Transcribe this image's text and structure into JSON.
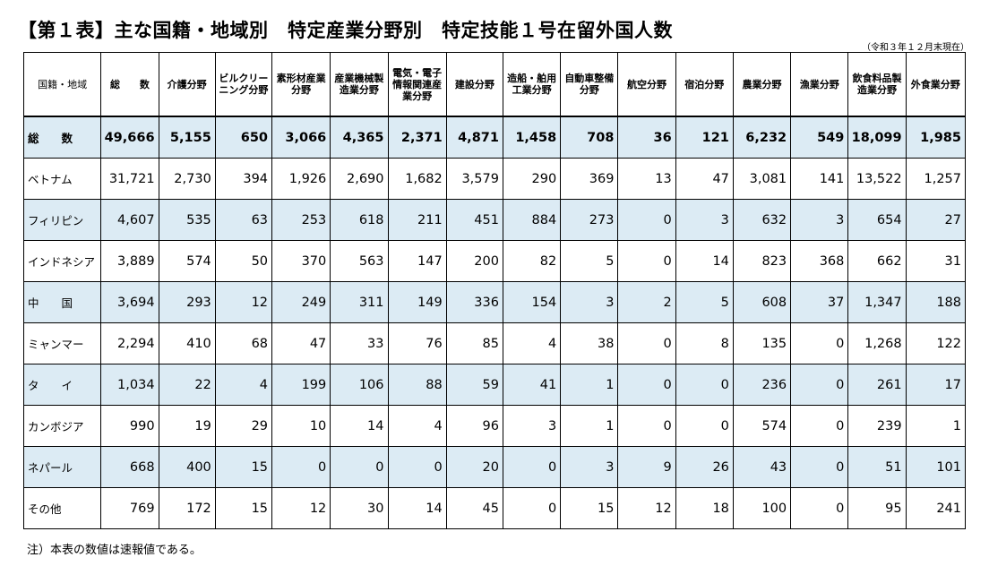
{
  "title": "【第１表】主な国籍・地域別　特定産業分野別　特定技能１号在留外国人数",
  "as_of": "（令和３年１２月末現在）",
  "headers": [
    "国籍・地域",
    "総　　数",
    "介護分野",
    "ビルクリーニング分野",
    "素形材産業分野",
    "産業機械製造業分野",
    "電気・電子情報関連産業分野",
    "建設分野",
    "造船・舶用工業分野",
    "自動車整備分野",
    "航空分野",
    "宿泊分野",
    "農業分野",
    "漁業分野",
    "飲食料品製造業分野",
    "外食業分野"
  ],
  "rows": [
    {
      "region": "総　　数",
      "values": [
        "49,666",
        "5,155",
        "650",
        "3,066",
        "4,365",
        "2,371",
        "4,871",
        "1,458",
        "708",
        "36",
        "121",
        "6,232",
        "549",
        "18,099",
        "1,985"
      ]
    },
    {
      "region": "ベトナム",
      "values": [
        "31,721",
        "2,730",
        "394",
        "1,926",
        "2,690",
        "1,682",
        "3,579",
        "290",
        "369",
        "13",
        "47",
        "3,081",
        "141",
        "13,522",
        "1,257"
      ]
    },
    {
      "region": "フィリピン",
      "values": [
        "4,607",
        "535",
        "63",
        "253",
        "618",
        "211",
        "451",
        "884",
        "273",
        "0",
        "3",
        "632",
        "3",
        "654",
        "27"
      ]
    },
    {
      "region": "インドネシア",
      "values": [
        "3,889",
        "574",
        "50",
        "370",
        "563",
        "147",
        "200",
        "82",
        "5",
        "0",
        "14",
        "823",
        "368",
        "662",
        "31"
      ]
    },
    {
      "region": "中　　国",
      "values": [
        "3,694",
        "293",
        "12",
        "249",
        "311",
        "149",
        "336",
        "154",
        "3",
        "2",
        "5",
        "608",
        "37",
        "1,347",
        "188"
      ]
    },
    {
      "region": "ミャンマー",
      "values": [
        "2,294",
        "410",
        "68",
        "47",
        "33",
        "76",
        "85",
        "4",
        "38",
        "0",
        "8",
        "135",
        "0",
        "1,268",
        "122"
      ]
    },
    {
      "region": "タ　　イ",
      "values": [
        "1,034",
        "22",
        "4",
        "199",
        "106",
        "88",
        "59",
        "41",
        "1",
        "0",
        "0",
        "236",
        "0",
        "261",
        "17"
      ]
    },
    {
      "region": "カンボジア",
      "values": [
        "990",
        "19",
        "29",
        "10",
        "14",
        "4",
        "96",
        "3",
        "1",
        "0",
        "0",
        "574",
        "0",
        "239",
        "1"
      ]
    },
    {
      "region": "ネパール",
      "values": [
        "668",
        "400",
        "15",
        "0",
        "0",
        "0",
        "20",
        "0",
        "3",
        "9",
        "26",
        "43",
        "0",
        "51",
        "101"
      ]
    },
    {
      "region": "その他",
      "values": [
        "769",
        "172",
        "15",
        "12",
        "30",
        "14",
        "45",
        "0",
        "15",
        "12",
        "18",
        "100",
        "0",
        "95",
        "241"
      ]
    }
  ],
  "note": "注）本表の数値は速報値である。"
}
